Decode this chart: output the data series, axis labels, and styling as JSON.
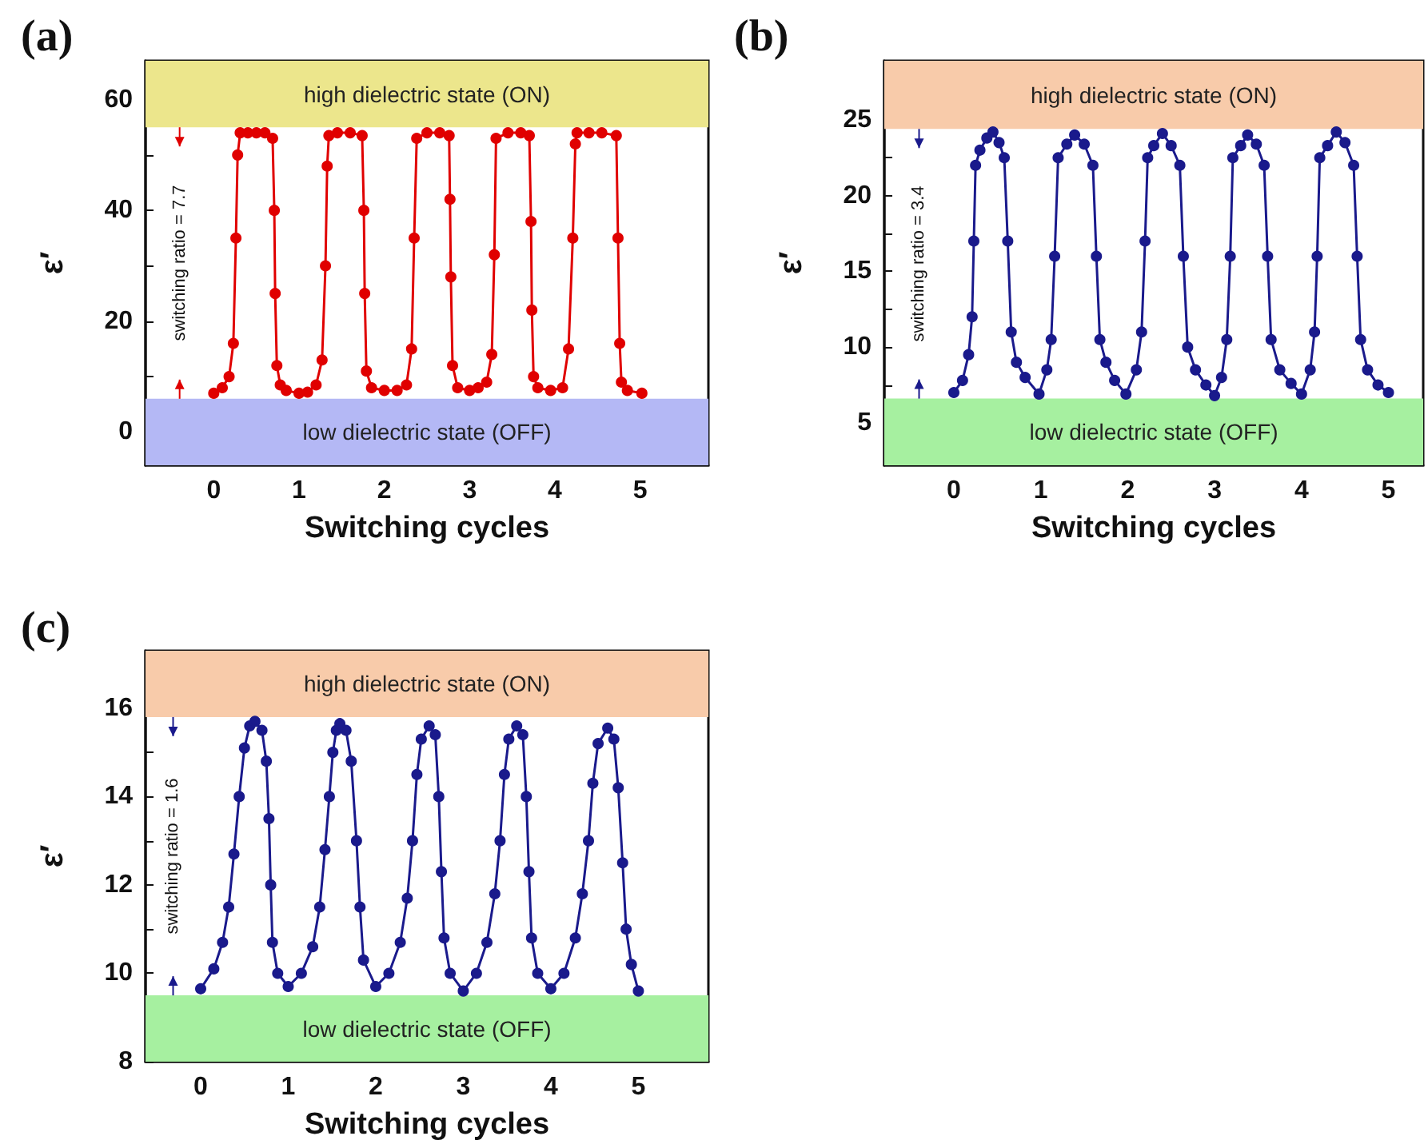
{
  "chart_data": [
    {
      "type": "line",
      "title": "(a)",
      "xlabel": "Switching cycles",
      "ylabel": "ε′",
      "marker": "circle",
      "line_style": "solid",
      "grid": false,
      "xlim": [
        -0.8,
        5.8
      ],
      "ylim": [
        -6,
        67
      ],
      "xticks": [
        0,
        1,
        2,
        3,
        4,
        5
      ],
      "yticks": [
        0,
        {
          "value": 10,
          "label": null
        },
        20,
        {
          "value": 30,
          "label": null
        },
        40,
        {
          "value": 50,
          "label": null
        },
        60
      ],
      "annotations": [
        "switching ratio = 7.7"
      ],
      "bands": [
        {
          "axis": "y",
          "from": 55,
          "to": 67,
          "label": "high dielectric state (ON)",
          "color": "#ece68c"
        },
        {
          "axis": "y",
          "from": -6,
          "to": 6,
          "label": "low dielectric state (OFF)",
          "color": "#b4b8f5"
        }
      ],
      "series": [
        {
          "color": "#e00000",
          "x": [
            0,
            0.1,
            0.18,
            0.23,
            0.26,
            0.28,
            0.31,
            0.4,
            0.5,
            0.6,
            0.69,
            0.71,
            0.72,
            0.74,
            0.78,
            0.85,
            1.0,
            1.1,
            1.2,
            1.27,
            1.31,
            1.33,
            1.35,
            1.45,
            1.6,
            1.74,
            1.76,
            1.77,
            1.79,
            1.85,
            2.0,
            2.15,
            2.26,
            2.32,
            2.35,
            2.38,
            2.5,
            2.65,
            2.76,
            2.77,
            2.78,
            2.8,
            2.86,
            3.0,
            3.1,
            3.2,
            3.26,
            3.29,
            3.31,
            3.45,
            3.6,
            3.7,
            3.72,
            3.73,
            3.75,
            3.8,
            3.95,
            4.09,
            4.16,
            4.21,
            4.24,
            4.26,
            4.4,
            4.55,
            4.72,
            4.74,
            4.76,
            4.78,
            4.85,
            5.02
          ],
          "values": [
            7,
            8,
            10,
            16,
            35,
            50,
            54,
            54,
            54,
            54,
            53,
            40,
            25,
            12,
            8.5,
            7.5,
            7,
            7.2,
            8.5,
            13,
            30,
            48,
            53.5,
            54,
            54,
            53.5,
            40,
            25,
            11,
            8,
            7.5,
            7.5,
            8.5,
            15,
            35,
            53,
            54,
            54,
            53.5,
            42,
            28,
            12,
            8,
            7.5,
            8,
            9,
            14,
            32,
            53,
            54,
            54,
            53.5,
            38,
            22,
            10,
            8,
            7.5,
            8,
            15,
            35,
            52,
            54,
            54,
            54,
            53.5,
            35,
            16,
            9,
            7.5,
            7
          ]
        }
      ]
    },
    {
      "type": "line",
      "title": "(b)",
      "xlabel": "Switching cycles",
      "ylabel": "ε′",
      "marker": "circle",
      "line_style": "solid",
      "grid": false,
      "xlim": [
        -0.8,
        5.4
      ],
      "ylim": [
        2.2,
        28.9
      ],
      "xticks": [
        0,
        1,
        2,
        3,
        4,
        5
      ],
      "yticks": [
        5,
        {
          "value": 7.5,
          "label": null
        },
        10,
        {
          "value": 12.5,
          "label": null
        },
        15,
        {
          "value": 17.5,
          "label": null
        },
        20,
        {
          "value": 22.5,
          "label": null
        },
        25
      ],
      "annotations": [
        "switching ratio = 3.4"
      ],
      "bands": [
        {
          "axis": "y",
          "from": 24.4,
          "to": 28.9,
          "label": "high dielectric state (ON)",
          "color": "#f8cbaa"
        },
        {
          "axis": "y",
          "from": 2.2,
          "to": 6.6,
          "label": "low dielectric state (OFF)",
          "color": "#a6f0a0"
        }
      ],
      "series": [
        {
          "color": "#1a1a8c",
          "x": [
            0,
            0.1,
            0.17,
            0.21,
            0.23,
            0.25,
            0.3,
            0.38,
            0.45,
            0.52,
            0.58,
            0.62,
            0.66,
            0.72,
            0.82,
            0.98,
            1.07,
            1.12,
            1.16,
            1.2,
            1.3,
            1.39,
            1.5,
            1.6,
            1.64,
            1.68,
            1.75,
            1.85,
            1.98,
            2.1,
            2.16,
            2.2,
            2.23,
            2.3,
            2.4,
            2.5,
            2.6,
            2.64,
            2.69,
            2.78,
            2.9,
            3.0,
            3.08,
            3.14,
            3.18,
            3.21,
            3.3,
            3.38,
            3.48,
            3.57,
            3.61,
            3.65,
            3.75,
            3.88,
            4.0,
            4.1,
            4.15,
            4.18,
            4.21,
            4.3,
            4.4,
            4.5,
            4.6,
            4.64,
            4.68,
            4.76,
            4.88,
            5.0
          ],
          "values": [
            7,
            7.8,
            9.5,
            12,
            17,
            22,
            23,
            23.8,
            24.2,
            23.5,
            22.5,
            17,
            11,
            9,
            8,
            6.9,
            8.5,
            10.5,
            16,
            22.5,
            23.4,
            24,
            23.4,
            22,
            16,
            10.5,
            9,
            7.8,
            6.9,
            8.5,
            11,
            17,
            22.5,
            23.3,
            24.1,
            23.3,
            22,
            16,
            10,
            8.5,
            7.5,
            6.8,
            8,
            10.5,
            16,
            22.5,
            23.3,
            24,
            23.4,
            22,
            16,
            10.5,
            8.5,
            7.6,
            6.9,
            8.5,
            11,
            16,
            22.5,
            23.3,
            24.2,
            23.5,
            22,
            16,
            10.5,
            8.5,
            7.5,
            7.0
          ]
        }
      ]
    },
    {
      "type": "line",
      "title": "(c)",
      "xlabel": "Switching cycles",
      "ylabel": "ε′",
      "marker": "circle",
      "line_style": "solid",
      "grid": false,
      "xlim": [
        -0.63,
        5.8
      ],
      "ylim": [
        8,
        17.3
      ],
      "xticks": [
        0,
        1,
        2,
        3,
        4,
        5
      ],
      "yticks": [
        8,
        {
          "value": 9,
          "label": null
        },
        10,
        {
          "value": 11,
          "label": null
        },
        12,
        {
          "value": 13,
          "label": null
        },
        14,
        {
          "value": 15,
          "label": null
        },
        16
      ],
      "annotations": [
        "switching ratio = 1.6"
      ],
      "bands": [
        {
          "axis": "y",
          "from": 15.8,
          "to": 17.3,
          "label": "high dielectric state (ON)",
          "color": "#f8cbaa"
        },
        {
          "axis": "y",
          "from": 8,
          "to": 9.5,
          "label": "low dielectric state (OFF)",
          "color": "#a6f0a0"
        }
      ],
      "series": [
        {
          "color": "#1a1a8c",
          "x": [
            0,
            0.15,
            0.25,
            0.32,
            0.38,
            0.44,
            0.5,
            0.56,
            0.62,
            0.7,
            0.75,
            0.78,
            0.8,
            0.82,
            0.88,
            1.0,
            1.15,
            1.28,
            1.36,
            1.42,
            1.47,
            1.51,
            1.55,
            1.59,
            1.66,
            1.72,
            1.78,
            1.82,
            1.86,
            2.0,
            2.15,
            2.28,
            2.36,
            2.42,
            2.47,
            2.52,
            2.61,
            2.68,
            2.72,
            2.75,
            2.78,
            2.85,
            3.0,
            3.15,
            3.27,
            3.36,
            3.42,
            3.47,
            3.52,
            3.61,
            3.68,
            3.72,
            3.75,
            3.78,
            3.85,
            4.0,
            4.15,
            4.28,
            4.36,
            4.43,
            4.48,
            4.54,
            4.65,
            4.72,
            4.77,
            4.82,
            4.86,
            4.92,
            5.0
          ],
          "values": [
            9.65,
            10.1,
            10.7,
            11.5,
            12.7,
            14,
            15.1,
            15.6,
            15.7,
            15.5,
            14.8,
            13.5,
            12,
            10.7,
            10,
            9.7,
            10,
            10.6,
            11.5,
            12.8,
            14,
            15,
            15.5,
            15.65,
            15.5,
            14.8,
            13,
            11.5,
            10.3,
            9.7,
            10,
            10.7,
            11.7,
            13,
            14.5,
            15.3,
            15.6,
            15.4,
            14,
            12.3,
            10.8,
            10,
            9.6,
            10,
            10.7,
            11.8,
            13,
            14.5,
            15.3,
            15.6,
            15.4,
            14,
            12.3,
            10.8,
            10,
            9.65,
            10,
            10.8,
            11.8,
            13,
            14.3,
            15.2,
            15.55,
            15.3,
            14.2,
            12.5,
            11,
            10.2,
            9.6
          ]
        }
      ]
    }
  ]
}
